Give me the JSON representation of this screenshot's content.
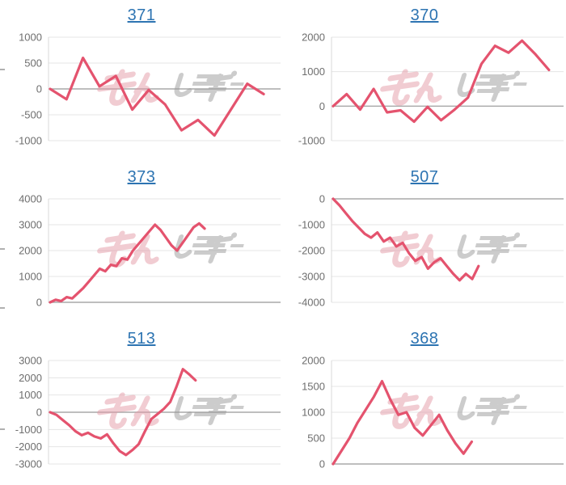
{
  "page": {
    "background": "#ffffff"
  },
  "watermark": {
    "text": "みんレポ",
    "pink_text": "みん",
    "gray_text": "レポ"
  },
  "colors": {
    "line": "#e4536e",
    "grid": "#e4e4e4",
    "zero_grid": "#a8a8a8",
    "axis_line": "#d9d9d9",
    "tick_label": "#6e6e6e",
    "title_link": "#2d74b2",
    "watermark_pink": "#e59aa7",
    "watermark_gray": "#9b9b9b",
    "edge_mark": "#b0b0b0",
    "background": "#ffffff"
  },
  "edge_marks_y": [
    85,
    307,
    380,
    530
  ],
  "chart_data": [
    {
      "type": "line",
      "title": "371",
      "title_is_link": true,
      "ylim": [
        -1000,
        1000
      ],
      "yticks": [
        1000,
        500,
        0,
        -500,
        -1000
      ],
      "values": [
        0,
        -200,
        600,
        50,
        250,
        -400,
        -20,
        -300,
        -800,
        -600,
        -900,
        -400,
        100,
        -100
      ],
      "width_fraction": 0.94,
      "x_axis_labels": "none",
      "legend": "none",
      "grid": "horizontal-only"
    },
    {
      "type": "line",
      "title": "370",
      "title_is_link": true,
      "ylim": [
        -1000,
        2000
      ],
      "yticks": [
        2000,
        1000,
        0,
        -1000
      ],
      "values": [
        0,
        350,
        -100,
        500,
        -180,
        -120,
        -450,
        -20,
        -410,
        -100,
        250,
        1230,
        1750,
        1550,
        1900,
        1500,
        1050
      ],
      "width_fraction": 0.95,
      "x_axis_labels": "none",
      "legend": "none",
      "grid": "horizontal-only"
    },
    {
      "type": "line",
      "title": "373",
      "title_is_link": true,
      "ylim": [
        0,
        4000
      ],
      "yticks": [
        4000,
        3000,
        2000,
        1000,
        0
      ],
      "values": [
        0,
        100,
        50,
        200,
        150,
        350,
        550,
        800,
        1050,
        1300,
        1200,
        1450,
        1400,
        1700,
        1650,
        2000,
        2250,
        2500,
        2750,
        3000,
        2800,
        2500,
        2200,
        2000,
        2300,
        2600,
        2900,
        3050,
        2850
      ],
      "width_fraction": 0.68,
      "x_axis_labels": "none",
      "legend": "none",
      "grid": "horizontal-only"
    },
    {
      "type": "line",
      "title": "507",
      "title_is_link": true,
      "ylim": [
        -4000,
        0
      ],
      "yticks": [
        0,
        -1000,
        -2000,
        -3000,
        -4000
      ],
      "values": [
        0,
        -250,
        -550,
        -850,
        -1100,
        -1350,
        -1500,
        -1300,
        -1650,
        -1500,
        -1840,
        -1700,
        -2100,
        -2400,
        -2250,
        -2700,
        -2450,
        -2300,
        -2600,
        -2900,
        -3150,
        -2900,
        -3100,
        -2600
      ],
      "width_fraction": 0.64,
      "x_axis_labels": "none",
      "legend": "none",
      "grid": "horizontal-only"
    },
    {
      "type": "line",
      "title": "513",
      "title_is_link": true,
      "ylim": [
        -3000,
        3000
      ],
      "yticks": [
        3000,
        2000,
        1000,
        0,
        -1000,
        -2000,
        -3000
      ],
      "values": [
        0,
        -150,
        -450,
        -750,
        -1100,
        -1330,
        -1190,
        -1400,
        -1520,
        -1280,
        -1800,
        -2250,
        -2480,
        -2200,
        -1850,
        -1100,
        -400,
        -100,
        200,
        600,
        1500,
        2500,
        2200,
        1850
      ],
      "width_fraction": 0.64,
      "x_axis_labels": "none",
      "legend": "none",
      "grid": "horizontal-only"
    },
    {
      "type": "line",
      "title": "368",
      "title_is_link": true,
      "ylim": [
        0,
        2000
      ],
      "yticks": [
        2000,
        1500,
        1000,
        500,
        0
      ],
      "values": [
        0,
        250,
        500,
        800,
        1050,
        1300,
        1600,
        1250,
        950,
        1000,
        700,
        550,
        750,
        950,
        650,
        400,
        200,
        430
      ],
      "width_fraction": 0.61,
      "x_axis_labels": "none",
      "legend": "none",
      "grid": "horizontal-only"
    }
  ]
}
